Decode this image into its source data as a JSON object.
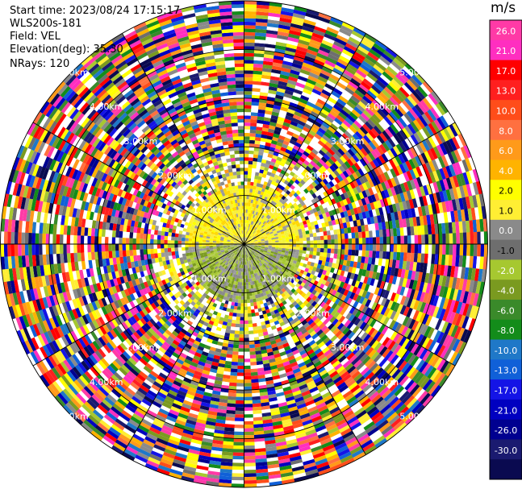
{
  "info": {
    "start_time": "Start time: 2023/08/24 17:15:17",
    "station": "WLS200s-181",
    "field": "Field: VEL",
    "elevation": "Elevation(deg): 35.30",
    "nrays": "NRays: 120"
  },
  "chart_data": {
    "type": "polar-ppi",
    "field": "VEL",
    "unit": "m/s",
    "nrays": 120,
    "elevation_deg": 35.3,
    "range_km_max": 5.0,
    "ring_labels": [
      "1.00km",
      "2.00km",
      "3.00km",
      "4.00km",
      "5.00km"
    ],
    "rings_km": [
      1,
      2,
      3,
      4,
      5
    ],
    "colorbar": {
      "ticks": [
        "26.0",
        "21.0",
        "17.0",
        "13.0",
        "10.0",
        "8.0",
        "6.0",
        "4.0",
        "2.0",
        "1.0",
        "0.0",
        "-1.0",
        "-2.0",
        "-4.0",
        "-6.0",
        "-8.0",
        "-10.0",
        "-13.0",
        "-17.0",
        "-21.0",
        "-26.0",
        "-30.0"
      ],
      "colors": [
        "#ff3aa6",
        "#ff2ec0",
        "#ff0000",
        "#ff1f1f",
        "#ff4d1a",
        "#ff7040",
        "#ff9a1a",
        "#ffb300",
        "#ffff00",
        "#ffee33",
        "#8a8a8a",
        "#6e6e6e",
        "#a6c830",
        "#7a9a20",
        "#3a8a2a",
        "#138c1a",
        "#1f78c8",
        "#1060d8",
        "#1414e6",
        "#0000c0",
        "#000090",
        "#1a1a70",
        "#0a0a50"
      ]
    }
  }
}
